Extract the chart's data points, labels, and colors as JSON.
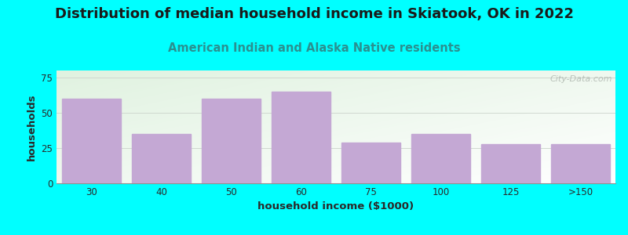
{
  "title": "Distribution of median household income in Skiatook, OK in 2022",
  "subtitle": "American Indian and Alaska Native residents",
  "xlabel": "household income ($1000)",
  "ylabel": "households",
  "categories": [
    "30",
    "40",
    "50",
    "60",
    "75",
    "100",
    "125",
    ">150"
  ],
  "values": [
    60,
    35,
    60,
    65,
    29,
    35,
    28,
    28
  ],
  "bar_color": "#C4A8D4",
  "bar_edge_color": "#C4A8D4",
  "background_color": "#00FFFF",
  "title_fontsize": 13,
  "title_color": "#1a1a1a",
  "subtitle_fontsize": 10.5,
  "subtitle_color": "#2a9090",
  "axis_label_fontsize": 9.5,
  "axis_label_color": "#2a2a2a",
  "tick_fontsize": 8.5,
  "tick_color": "#2a2a2a",
  "ylim": [
    0,
    80
  ],
  "yticks": [
    0,
    25,
    50,
    75
  ],
  "watermark": "City-Data.com",
  "watermark_color": "#B0B8B0",
  "grid_color": "#D0D8D0",
  "plot_bg_color_topleft": [
    0.878,
    0.949,
    0.878
  ],
  "plot_bg_color_bottomright": [
    1.0,
    1.0,
    1.0
  ]
}
